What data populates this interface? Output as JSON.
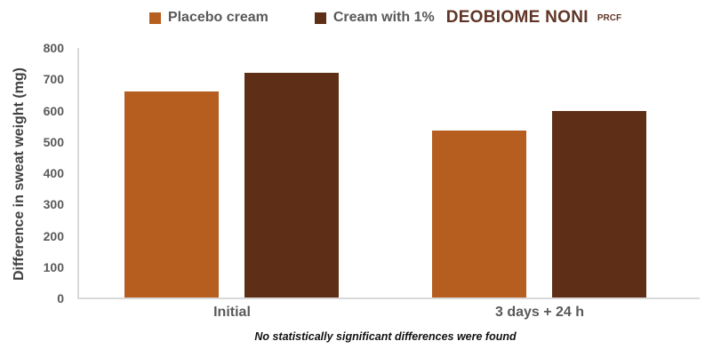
{
  "legend": {
    "items": [
      {
        "label": "Placebo cream",
        "color": "#B55E20"
      },
      {
        "label": "Cream with 1%",
        "color": "#5E2F16",
        "brand": "DEOBIOME NONI",
        "superscript": "PRCF",
        "brand_color": "#5F3526"
      }
    ]
  },
  "chart_data": {
    "type": "bar",
    "title": "",
    "categories": [
      "Initial",
      "3 days + 24 h"
    ],
    "series": [
      {
        "name": "Placebo cream",
        "color": "#B55E20",
        "values": [
          660,
          535
        ]
      },
      {
        "name": "Cream with 1% DEOBIOME NONI PRCF",
        "color": "#5E2F16",
        "values": [
          720,
          600
        ]
      }
    ],
    "ylabel": "Difference in sweat weight (mg)",
    "ylim": [
      0,
      800
    ],
    "ytick_step": 100,
    "yticks": [
      800,
      700,
      600,
      500,
      400,
      300,
      200,
      100,
      0
    ],
    "grid": false,
    "legend_position": "top",
    "axis_line_color": "#D9D9D9"
  },
  "footer": {
    "note": "No statistically significant differences were found"
  }
}
